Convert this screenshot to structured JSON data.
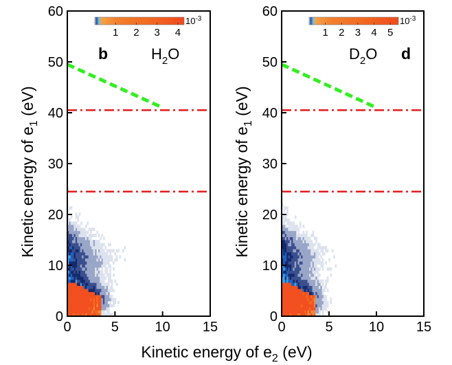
{
  "chart_data": [
    {
      "type": "heatmap",
      "panel_label": "b",
      "molecule": "H",
      "molecule_sub": "2",
      "molecule_tail": "O",
      "xlabel": "Kinetic energy of e",
      "xlabel_sub": "2",
      "xlabel_unit": " (eV)",
      "ylabel": "Kinetic energy of e",
      "ylabel_sub": "1",
      "ylabel_unit": " (eV)",
      "xlim": [
        0,
        15
      ],
      "ylim": [
        0,
        60
      ],
      "x_ticks": [
        "0",
        "5",
        "10",
        "15"
      ],
      "y_ticks": [
        "0",
        "10",
        "20",
        "30",
        "40",
        "50",
        "60"
      ],
      "colorbar": {
        "ticks": [
          "1",
          "2",
          "3",
          "4"
        ],
        "max": 4.3,
        "exponent": "10",
        "exponent_power": "-3"
      },
      "lines": [
        {
          "kind": "dashed-green",
          "color": "#33ee22",
          "points": [
            [
              0,
              49.5
            ],
            [
              10,
              41
            ]
          ]
        },
        {
          "kind": "dashdot-red",
          "color": "#e31a1c",
          "y": 40.5
        },
        {
          "kind": "dashdot-red",
          "color": "#e31a1c",
          "y": 24.5
        }
      ]
    },
    {
      "type": "heatmap",
      "panel_label": "d",
      "molecule": "D",
      "molecule_sub": "2",
      "molecule_tail": "O",
      "ylabel": "Kinetic energy of e",
      "ylabel_sub": "1",
      "ylabel_unit": " (eV)",
      "xlim": [
        0,
        15
      ],
      "ylim": [
        0,
        60
      ],
      "x_ticks": [
        "0",
        "5",
        "10",
        "15"
      ],
      "y_ticks": [
        "0",
        "10",
        "20",
        "30",
        "40",
        "50",
        "60"
      ],
      "colorbar": {
        "ticks": [
          "1",
          "2",
          "3",
          "4",
          "5"
        ],
        "max": 5.5,
        "exponent": "10",
        "exponent_power": "-3"
      },
      "lines": [
        {
          "kind": "dashed-green",
          "color": "#33ee22",
          "points": [
            [
              0,
              49.5
            ],
            [
              10,
              41
            ]
          ]
        },
        {
          "kind": "dashdot-red",
          "color": "#e31a1c",
          "y": 40.5
        },
        {
          "kind": "dashdot-red",
          "color": "#e31a1c",
          "y": 24.5
        }
      ]
    }
  ],
  "colors": {
    "colormap": [
      "#dde3ee",
      "#9aa6c8",
      "#3b4f8f",
      "#152a6e",
      "#1f63c0",
      "#3fa3e0",
      "#f08a3c",
      "#f26a1e",
      "#f25020"
    ],
    "green_dash": "#33ee22",
    "red_dashdot": "#e31a1c"
  }
}
